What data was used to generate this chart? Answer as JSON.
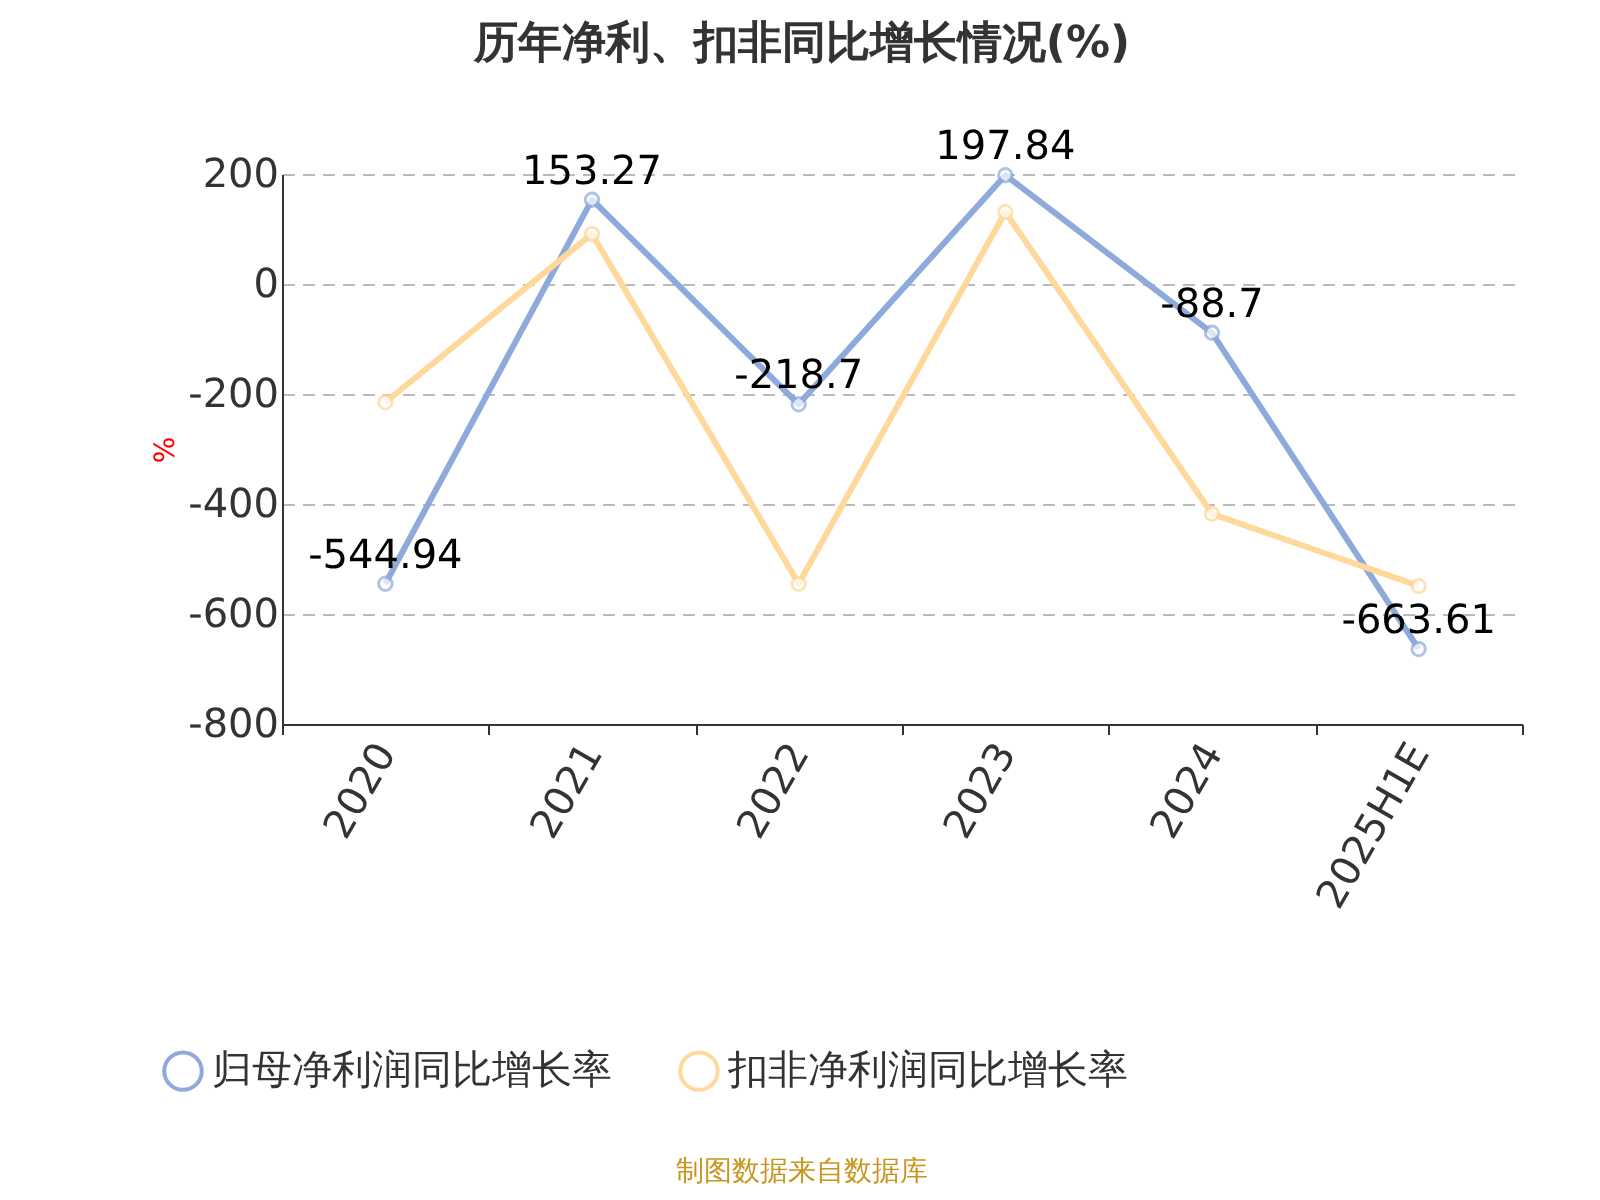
{
  "chart_data": {
    "type": "line",
    "title": "历年净利、扣非同比增长情况(%)",
    "ylabel": "%",
    "categories": [
      "2020",
      "2021",
      "2022",
      "2023",
      "2024",
      "2025H1E"
    ],
    "series": [
      {
        "name": "归母净利润同比增长率",
        "color": "#8eaadb",
        "values": [
          -544.94,
          153.27,
          -218.7,
          197.84,
          -88.7,
          -663.61
        ],
        "value_labels": [
          "-544.94",
          "153.27",
          "-218.7",
          "197.84",
          "-88.7",
          "-663.61"
        ]
      },
      {
        "name": "扣非净利润同比增长率",
        "color": "#ffd89b",
        "values": [
          -215,
          91,
          -545,
          131,
          -418,
          -549
        ]
      }
    ],
    "ylim": [
      -800,
      200
    ],
    "yticks": [
      -800,
      -600,
      -400,
      -200,
      0,
      200
    ],
    "grid": "y",
    "legend": "bottom",
    "marker": "circle",
    "line_style": "solid",
    "annotations": [
      "制图数据来自数据库"
    ]
  }
}
